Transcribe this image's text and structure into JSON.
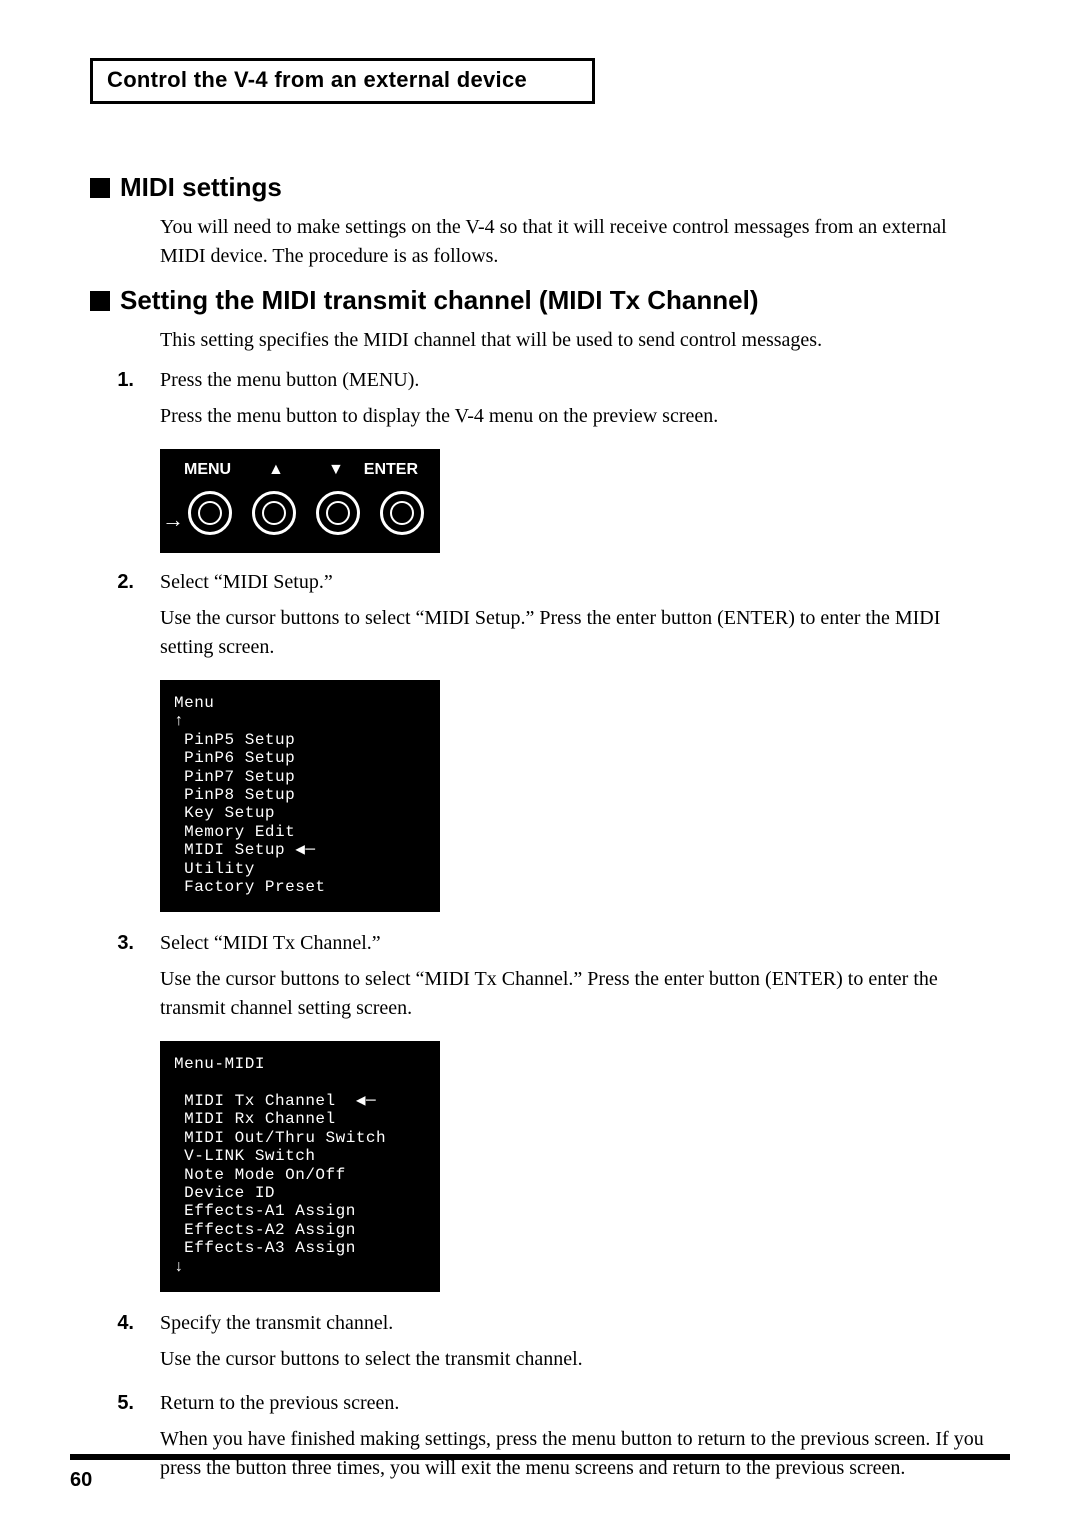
{
  "banner": "Control the V-4 from an external device",
  "section1": {
    "heading": "MIDI settings",
    "body": "You will need to make settings on the V-4 so that it will receive control messages from an external MIDI device. The procedure is as follows."
  },
  "section2": {
    "heading": "Setting the MIDI transmit channel (MIDI Tx Channel)",
    "body": "This setting specifies the MIDI channel that will be used to send control messages."
  },
  "steps": {
    "s1": {
      "num": "1.",
      "title": "Press the menu button (MENU).",
      "body": "Press the menu button to display the V-4 menu on the preview screen."
    },
    "s2": {
      "num": "2.",
      "title": "Select “MIDI Setup.”",
      "body": "Use the cursor buttons to select “MIDI Setup.” Press the enter button (ENTER) to enter the MIDI setting screen."
    },
    "s3": {
      "num": "3.",
      "title": "Select “MIDI Tx Channel.”",
      "body": "Use the cursor buttons to select “MIDI Tx Channel.” Press the enter button (ENTER) to enter the transmit channel setting screen."
    },
    "s4": {
      "num": "4.",
      "title": "Specify the transmit channel.",
      "body": "Use the cursor buttons to select the transmit channel."
    },
    "s5": {
      "num": "5.",
      "title": "Return to the previous screen.",
      "body": "When you have finished making settings, press the menu button to return to the previous screen. If you press the button three times, you will exit the menu screens and return to the previous screen."
    }
  },
  "hw": {
    "menu": "MENU",
    "enter": "ENTER",
    "up": "▲",
    "down": "▼",
    "arrow": "→"
  },
  "osd1": "Menu\n↑\n PinP5 Setup\n PinP6 Setup\n PinP7 Setup\n PinP8 Setup\n Key Setup\n Memory Edit\n MIDI Setup ◀─\n Utility\n Factory Preset",
  "osd2": "Menu-MIDI\n\n MIDI Tx Channel  ◀─\n MIDI Rx Channel\n MIDI Out/Thru Switch\n V-LINK Switch\n Note Mode On/Off\n Device ID\n Effects-A1 Assign\n Effects-A2 Assign\n Effects-A3 Assign\n↓",
  "pageNumber": "60"
}
